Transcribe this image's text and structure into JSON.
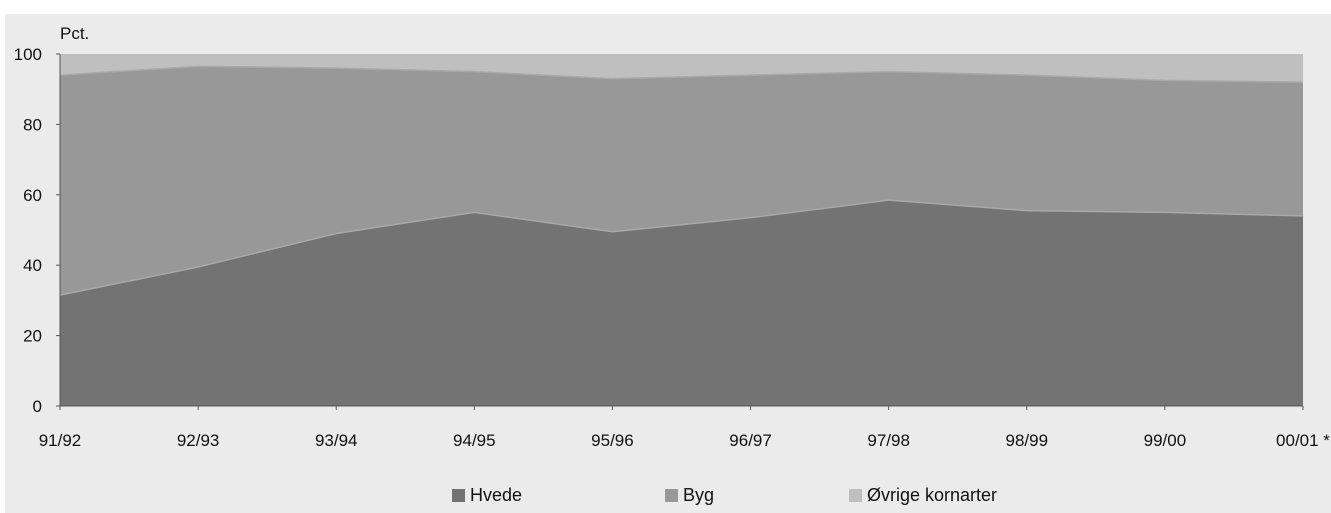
{
  "chart_data": {
    "type": "area",
    "stacked": true,
    "title": "",
    "ylabel": "Pct.",
    "xlabel": "",
    "ylim": [
      0,
      100
    ],
    "yticks": [
      0,
      20,
      40,
      60,
      80,
      100
    ],
    "grid": false,
    "legend_position": "bottom",
    "categories": [
      "91/92",
      "92/93",
      "93/94",
      "94/95",
      "95/96",
      "96/97",
      "97/98",
      "98/99",
      "99/00",
      "00/01 *"
    ],
    "series": [
      {
        "name": "Hvede",
        "color": "#737373",
        "values": [
          31.5,
          39.5,
          49,
          55,
          49.5,
          53.5,
          58.5,
          55.5,
          55,
          54
        ]
      },
      {
        "name": "Byg",
        "color": "#989898",
        "values": [
          62.5,
          57,
          47,
          40,
          43.5,
          40.5,
          36.5,
          38.5,
          37.5,
          38
        ]
      },
      {
        "name": "Øvrige kornarter",
        "color": "#bfbfbf",
        "values": [
          6,
          3.5,
          4,
          5,
          7,
          6,
          5,
          6,
          7.5,
          8
        ]
      }
    ]
  }
}
